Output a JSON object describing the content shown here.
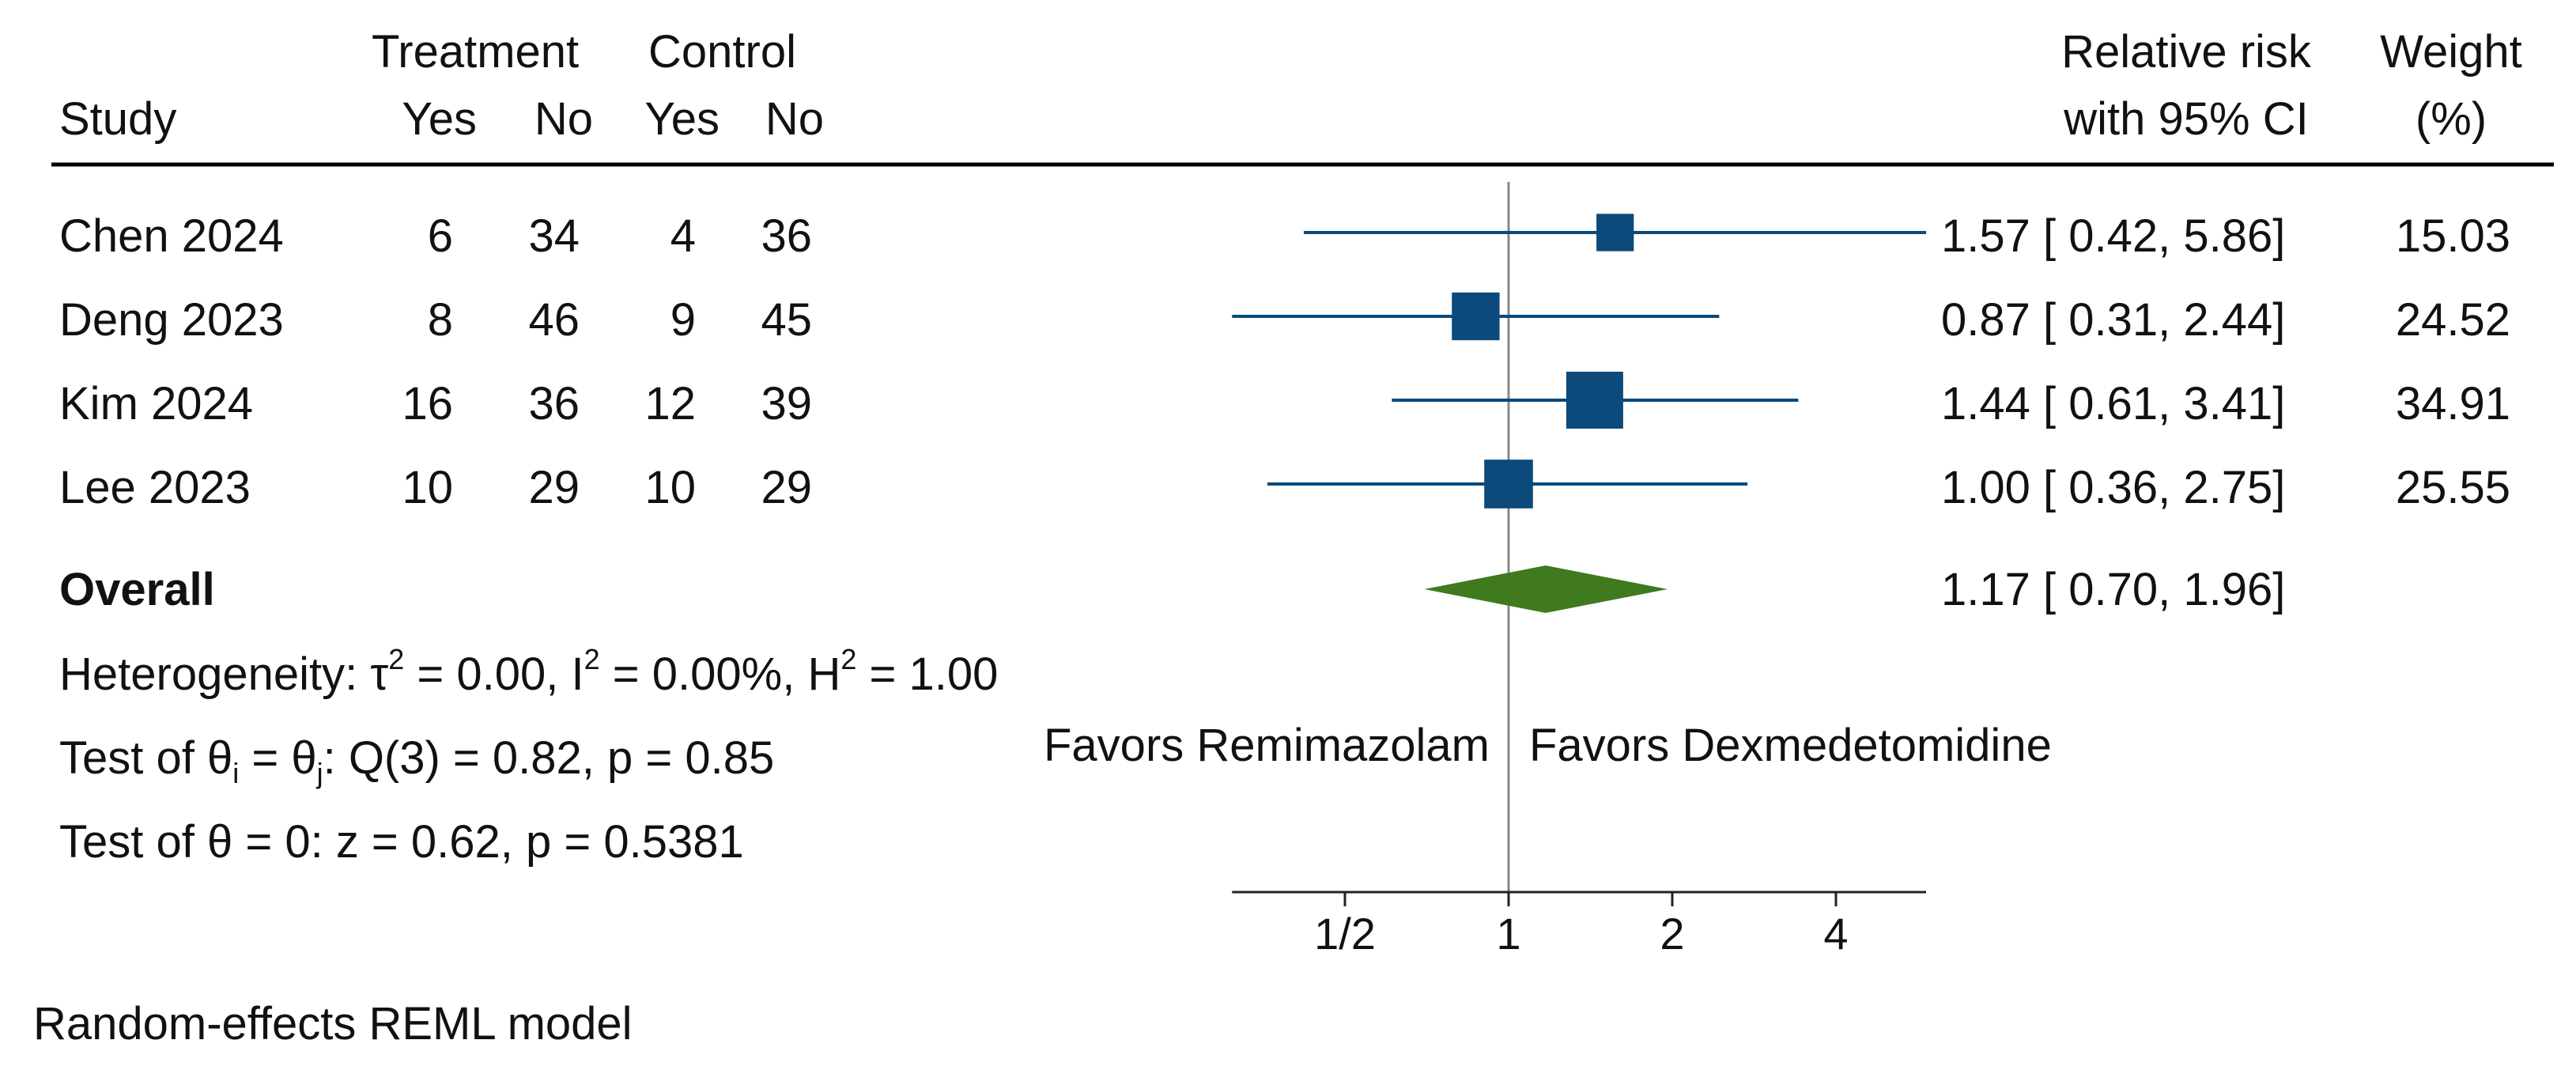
{
  "chart_data": {
    "type": "forest",
    "scale": "log",
    "columns": {
      "treatment": "Treatment",
      "control": "Control",
      "study": "Study",
      "yes": "Yes",
      "no": "No",
      "rr_line1": "Relative risk",
      "rr_line2": "with 95% CI",
      "weight_line1": "Weight",
      "weight_line2": "(%)"
    },
    "studies": [
      {
        "name": "Chen 2024",
        "t_yes": "6",
        "t_no": "34",
        "c_yes": "4",
        "c_no": "36",
        "rr": 1.57,
        "lo": 0.42,
        "hi": 5.86,
        "ci_text": "1.57 [ 0.42,  5.86]",
        "weight": 15.03,
        "weight_text": "15.03"
      },
      {
        "name": "Deng  2023",
        "t_yes": "8",
        "t_no": "46",
        "c_yes": "9",
        "c_no": "45",
        "rr": 0.87,
        "lo": 0.31,
        "hi": 2.44,
        "ci_text": "0.87 [ 0.31,  2.44]",
        "weight": 24.52,
        "weight_text": "24.52"
      },
      {
        "name": "Kim 2024",
        "t_yes": "16",
        "t_no": "36",
        "c_yes": "12",
        "c_no": "39",
        "rr": 1.44,
        "lo": 0.61,
        "hi": 3.41,
        "ci_text": "1.44 [ 0.61,  3.41]",
        "weight": 34.91,
        "weight_text": "34.91"
      },
      {
        "name": "Lee 2023",
        "t_yes": "10",
        "t_no": "29",
        "c_yes": "10",
        "c_no": "29",
        "rr": 1.0,
        "lo": 0.36,
        "hi": 2.75,
        "ci_text": "1.00 [ 0.36,  2.75]",
        "weight": 25.55,
        "weight_text": "25.55"
      }
    ],
    "overall": {
      "label": "Overall",
      "rr": 1.17,
      "lo": 0.7,
      "hi": 1.96,
      "ci_text": "1.17 [ 0.70,  1.96]"
    },
    "heterogeneity": {
      "prefix": "Heterogeneity: τ",
      "sup1": "2",
      "part2": " = 0.00, I",
      "sup2": "2",
      "part3": " = 0.00%, H",
      "sup3": "2",
      "part4": " = 1.00"
    },
    "test_ij": {
      "prefix": "Test of θ",
      "sub1": "i",
      "part2": " = θ",
      "sub2": "j",
      "part3": ": Q(3) = 0.82, p = 0.85"
    },
    "test_zero": "Test of θ = 0: z = 0.62, p = 0.5381",
    "favors_left": "Favors Remimazolam",
    "favors_right": "Favors Dexmedetomidine",
    "x_ticks": [
      {
        "value": 0.5,
        "label": "1/2"
      },
      {
        "value": 1,
        "label": "1"
      },
      {
        "value": 2,
        "label": "2"
      },
      {
        "value": 4,
        "label": "4"
      }
    ],
    "x_range": [
      0.31,
      5.86
    ],
    "model_note": "Random-effects REML model",
    "colors": {
      "square": "#0b4a7a",
      "line": "#0b4a7a",
      "diamond": "#3f7a1f",
      "axis": "#222222",
      "ref": "#888888"
    }
  }
}
